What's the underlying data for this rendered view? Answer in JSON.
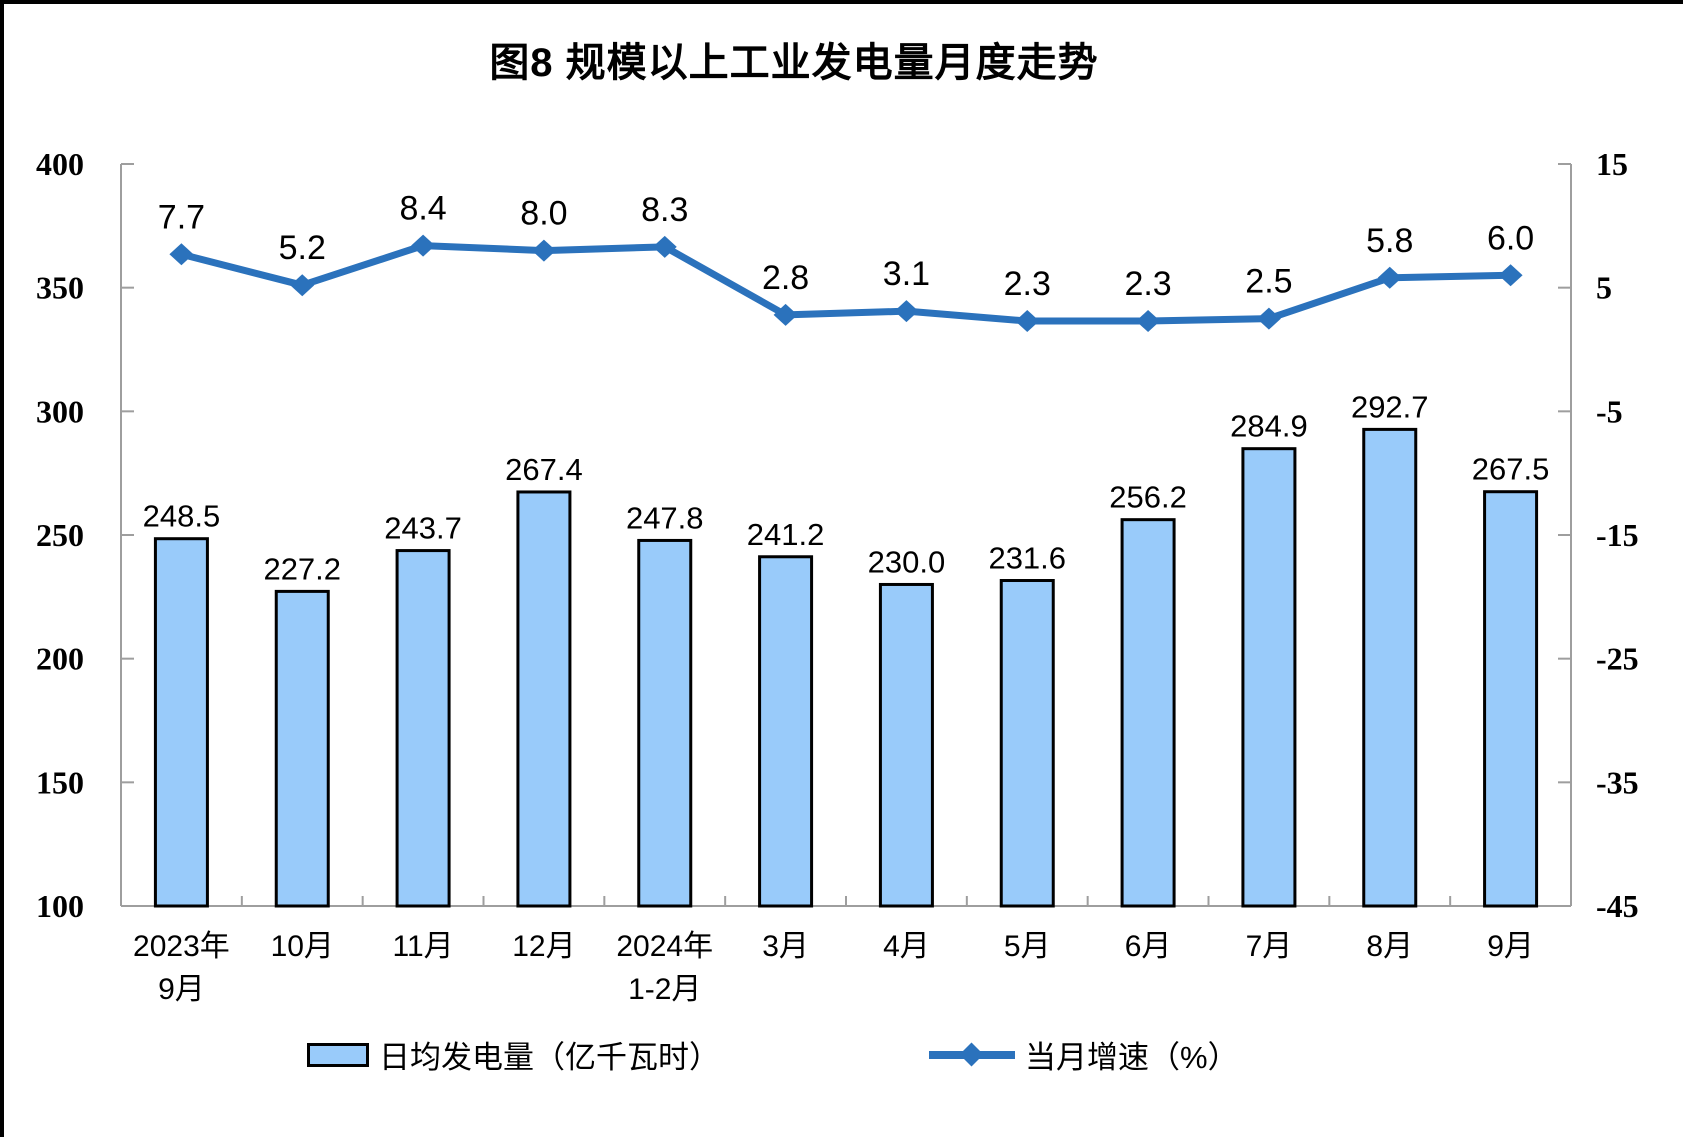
{
  "title": "图8 规模以上工业发电量月度走势",
  "chart_data": {
    "type": "bar+line",
    "categories": [
      [
        "2023年",
        "9月"
      ],
      [
        "10月"
      ],
      [
        "11月"
      ],
      [
        "12月"
      ],
      [
        "2024年",
        "1-2月"
      ],
      [
        "3月"
      ],
      [
        "4月"
      ],
      [
        "5月"
      ],
      [
        "6月"
      ],
      [
        "7月"
      ],
      [
        "8月"
      ],
      [
        "9月"
      ]
    ],
    "series": [
      {
        "name": "日均发电量（亿千瓦时）",
        "type": "bar",
        "axis": "left",
        "values": [
          248.5,
          227.2,
          243.7,
          267.4,
          247.8,
          241.2,
          230.0,
          231.6,
          256.2,
          284.9,
          292.7,
          267.5
        ],
        "labels": [
          "248.5",
          "227.2",
          "243.7",
          "267.4",
          "247.8",
          "241.2",
          "230.0",
          "231.6",
          "256.2",
          "284.9",
          "292.7",
          "267.5"
        ]
      },
      {
        "name": "当月增速（%）",
        "type": "line",
        "axis": "right",
        "values": [
          7.7,
          5.2,
          8.4,
          8.0,
          8.3,
          2.8,
          3.1,
          2.3,
          2.3,
          2.5,
          5.8,
          6.0
        ],
        "labels": [
          "7.7",
          "5.2",
          "8.4",
          "8.0",
          "8.3",
          "2.8",
          "3.1",
          "2.3",
          "2.3",
          "2.5",
          "5.8",
          "6.0"
        ]
      }
    ],
    "left_axis": {
      "min": 100,
      "max": 400,
      "ticks": [
        400,
        350,
        300,
        250,
        200,
        150,
        100
      ]
    },
    "right_axis": {
      "min": -45,
      "max": 15,
      "ticks": [
        15,
        5,
        -5,
        -15,
        -25,
        -35,
        -45
      ]
    },
    "grid": false,
    "legend_position": "bottom"
  },
  "legend": {
    "bar_label": "日均发电量（亿千瓦时）",
    "line_label": "当月增速（%）"
  },
  "colors": {
    "bar_fill": "#99CBFA",
    "bar_border": "#000000",
    "line": "#2B72BC",
    "axis": "#9E9E9E",
    "text": "#000000",
    "background": "#FFFFFF",
    "frame": "#000000"
  }
}
